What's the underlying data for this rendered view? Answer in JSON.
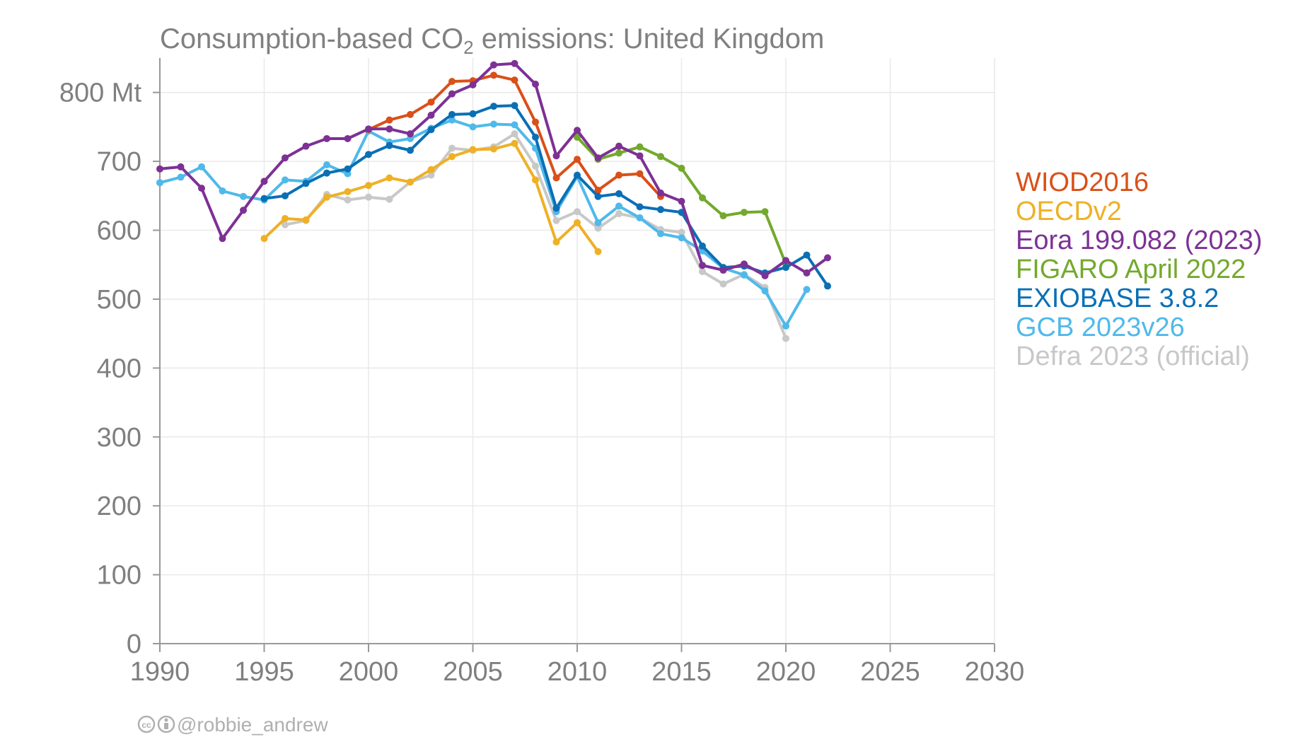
{
  "chart_data": {
    "type": "line",
    "title_prefix": "Consumption-based CO",
    "title_subscript": "2",
    "title_suffix": " emissions: United Kingdom",
    "xlim": [
      1990,
      2030
    ],
    "ylim": [
      0,
      850
    ],
    "grid": true,
    "legend_position": "right",
    "x_ticks": [
      1990,
      1995,
      2000,
      2005,
      2010,
      2015,
      2020,
      2025,
      2030
    ],
    "x_tick_labels": [
      "1990",
      "1995",
      "2000",
      "2005",
      "2010",
      "2015",
      "2020",
      "2025",
      "2030"
    ],
    "y_ticks": [
      0,
      100,
      200,
      300,
      400,
      500,
      600,
      700,
      800
    ],
    "y_tick_labels": [
      "0",
      "100",
      "200",
      "300",
      "400",
      "500",
      "600",
      "700",
      "800 Mt"
    ],
    "series": [
      {
        "name": "Defra 2023 (official)",
        "color": "#c8c8c8",
        "x": [
          1996,
          1997,
          1998,
          1999,
          2000,
          2001,
          2002,
          2003,
          2004,
          2005,
          2006,
          2007,
          2008,
          2009,
          2010,
          2011,
          2012,
          2013,
          2014,
          2015,
          2016,
          2017,
          2018,
          2019,
          2020
        ],
        "y": [
          608,
          614,
          652,
          644,
          648,
          645,
          670,
          680,
          719,
          716,
          721,
          740,
          693,
          614,
          627,
          603,
          624,
          618,
          601,
          597,
          540,
          522,
          536,
          517,
          443
        ]
      },
      {
        "name": "GCB 2023v26",
        "color": "#4fb9ea",
        "x": [
          1990,
          1991,
          1992,
          1993,
          1994,
          1995,
          1996,
          1997,
          1998,
          1999,
          2000,
          2001,
          2002,
          2003,
          2004,
          2005,
          2006,
          2007,
          2008,
          2009,
          2010,
          2011,
          2012,
          2013,
          2014,
          2015,
          2016,
          2017,
          2018,
          2019,
          2020,
          2021
        ],
        "y": [
          669,
          677,
          692,
          657,
          649,
          644,
          673,
          671,
          695,
          682,
          744,
          728,
          733,
          748,
          760,
          750,
          754,
          753,
          719,
          627,
          678,
          611,
          635,
          618,
          595,
          589,
          570,
          545,
          535,
          512,
          461,
          514
        ]
      },
      {
        "name": "OECDv2",
        "color": "#efb025",
        "x": [
          1995,
          1996,
          1997,
          1998,
          1999,
          2000,
          2001,
          2002,
          2003,
          2004,
          2005,
          2006,
          2007,
          2008,
          2009,
          2010,
          2011
        ],
        "y": [
          588,
          617,
          615,
          648,
          656,
          665,
          676,
          670,
          688,
          707,
          717,
          718,
          726,
          673,
          583,
          611,
          569
        ]
      },
      {
        "name": "WIOD2016",
        "color": "#d95019",
        "x": [
          2000,
          2001,
          2002,
          2003,
          2004,
          2005,
          2006,
          2007,
          2008,
          2009,
          2010,
          2011,
          2012,
          2013,
          2014
        ],
        "y": [
          746,
          760,
          768,
          786,
          816,
          817,
          825,
          818,
          757,
          676,
          703,
          658,
          680,
          682,
          649
        ]
      },
      {
        "name": "FIGARO April 2022",
        "color": "#73a92d",
        "x": [
          2010,
          2011,
          2012,
          2013,
          2014,
          2015,
          2016,
          2017,
          2018,
          2019,
          2020
        ],
        "y": [
          735,
          703,
          712,
          721,
          707,
          690,
          647,
          621,
          626,
          627,
          551
        ]
      },
      {
        "name": "EXIOBASE 3.8.2",
        "color": "#0a6fb5",
        "x": [
          1995,
          1996,
          1997,
          1998,
          1999,
          2000,
          2001,
          2002,
          2003,
          2004,
          2005,
          2006,
          2007,
          2008,
          2009,
          2010,
          2011,
          2012,
          2013,
          2014,
          2015,
          2016,
          2017,
          2018,
          2019,
          2020,
          2021,
          2022
        ],
        "y": [
          646,
          650,
          668,
          683,
          689,
          710,
          723,
          716,
          746,
          768,
          769,
          780,
          781,
          735,
          632,
          680,
          649,
          653,
          634,
          630,
          626,
          577,
          546,
          548,
          538,
          546,
          564,
          519
        ]
      },
      {
        "name": "Eora 199.082 (2023)",
        "color": "#7d3195",
        "x": [
          1990,
          1991,
          1992,
          1993,
          1994,
          1995,
          1996,
          1997,
          1998,
          1999,
          2000,
          2001,
          2002,
          2003,
          2004,
          2005,
          2006,
          2007,
          2008,
          2009,
          2010,
          2011,
          2012,
          2013,
          2014,
          2015,
          2016,
          2017,
          2018,
          2019,
          2020,
          2021,
          2022
        ],
        "y": [
          689,
          692,
          661,
          588,
          629,
          671,
          705,
          722,
          733,
          733,
          747,
          747,
          740,
          767,
          798,
          811,
          840,
          842,
          812,
          708,
          745,
          705,
          722,
          708,
          654,
          642,
          549,
          542,
          551,
          534,
          556,
          538,
          560
        ]
      }
    ],
    "legend_order": [
      "WIOD2016",
      "OECDv2",
      "Eora 199.082 (2023)",
      "FIGARO April 2022",
      "EXIOBASE 3.8.2",
      "GCB 2023v26",
      "Defra 2023 (official)"
    ]
  },
  "credit": {
    "text": "@robbie_andrew",
    "icon_names": [
      "cc-icon",
      "by-icon"
    ]
  }
}
